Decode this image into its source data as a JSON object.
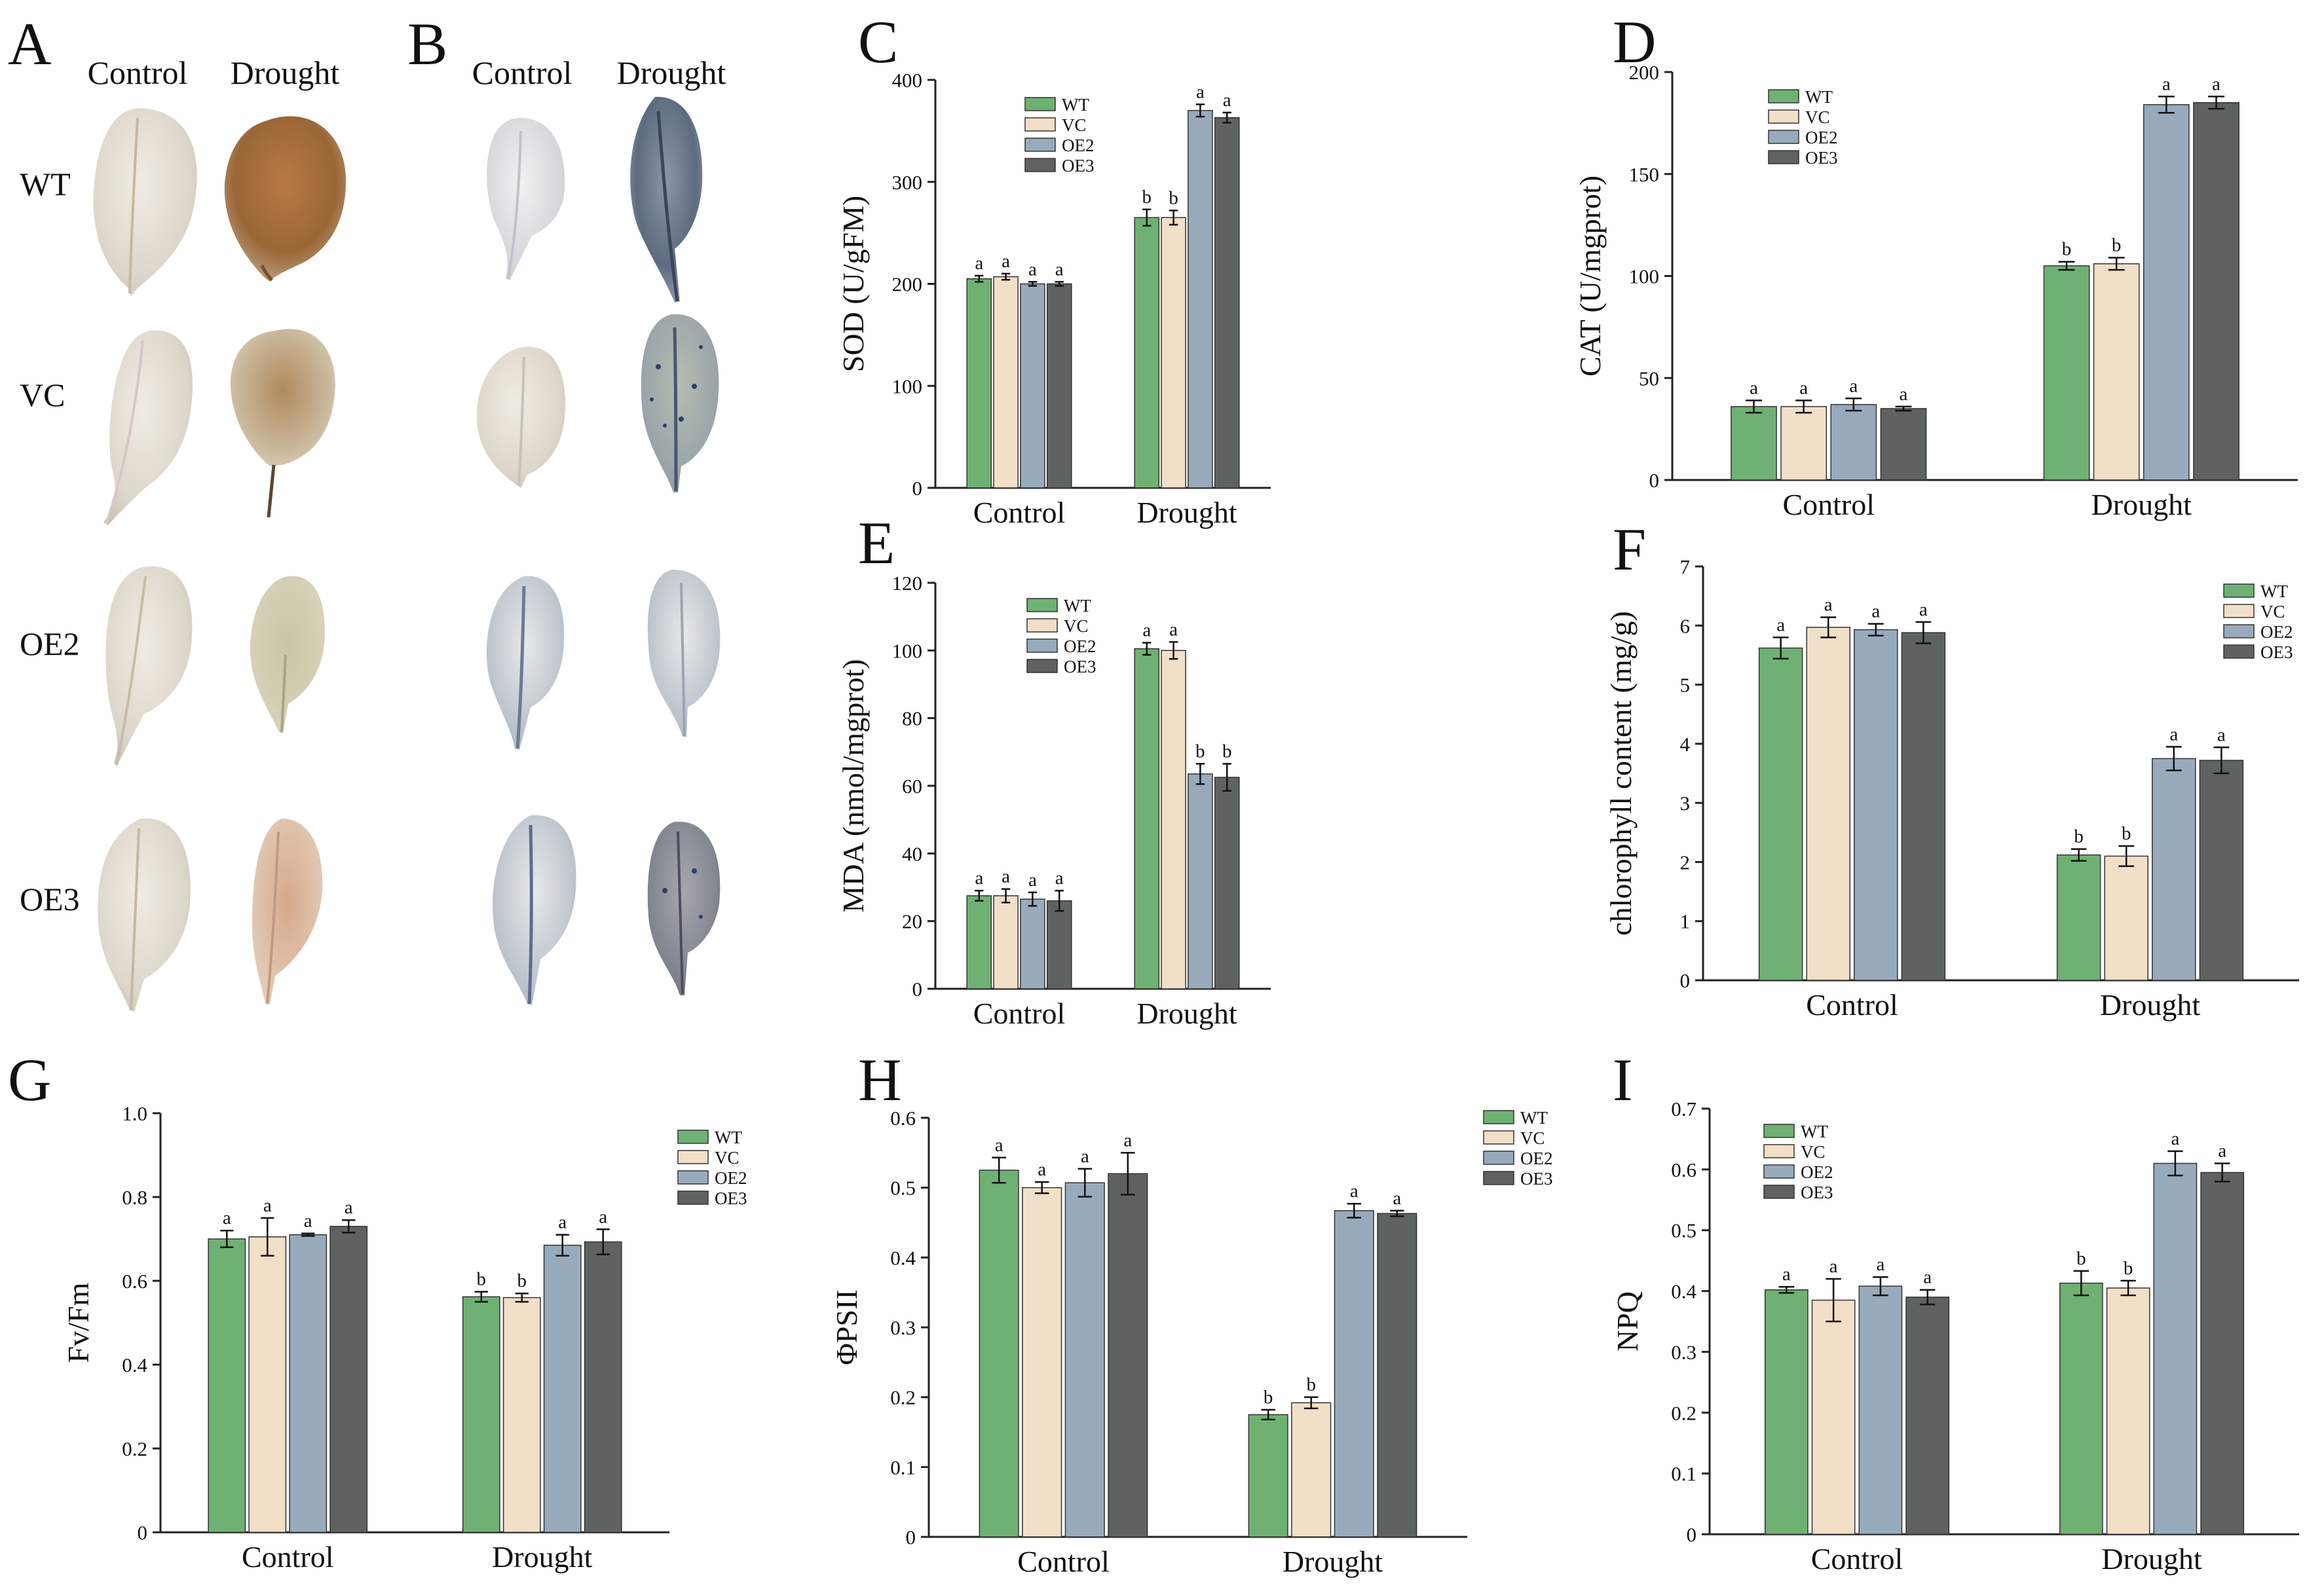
{
  "colors": {
    "WT": "#6fb173",
    "VC": "#f2dfc7",
    "OE2": "#98abbd",
    "OE3": "#5e6360",
    "axis": "#222222",
    "leaf_control": "#dcd6cc",
    "leaf_drought_brown": "#a06b3e",
    "leaf_stain_blue": "#3e4f7a"
  },
  "photos": {
    "A": {
      "label": "A",
      "col_labels": [
        "Control",
        "Drought"
      ],
      "row_labels": [
        "WT",
        "VC",
        "OE2",
        "OE3"
      ]
    },
    "B": {
      "label": "B",
      "col_labels": [
        "Control",
        "Drought"
      ]
    }
  },
  "chart_data": [
    {
      "panel": "C",
      "type": "bar",
      "ylabel": "SOD (U/gFM)",
      "ylim": [
        0,
        400
      ],
      "yticks": [
        "0",
        "100",
        "200",
        "300",
        "400"
      ],
      "categories": [
        "Control",
        "Drought"
      ],
      "legend": "top-left",
      "series": [
        {
          "name": "WT",
          "values": [
            205,
            265
          ],
          "errors": [
            3,
            8
          ],
          "letters": [
            "a",
            "b"
          ]
        },
        {
          "name": "VC",
          "values": [
            207,
            265
          ],
          "errors": [
            3,
            7
          ],
          "letters": [
            "a",
            "b"
          ]
        },
        {
          "name": "OE2",
          "values": [
            200,
            370
          ],
          "errors": [
            2,
            6
          ],
          "letters": [
            "a",
            "a"
          ]
        },
        {
          "name": "OE3",
          "values": [
            200,
            363
          ],
          "errors": [
            2,
            5
          ],
          "letters": [
            "a",
            "a"
          ]
        }
      ]
    },
    {
      "panel": "D",
      "type": "bar",
      "ylabel": "CAT (U/mgprot)",
      "ylim": [
        0,
        200
      ],
      "yticks": [
        "0",
        "50",
        "100",
        "150",
        "200"
      ],
      "categories": [
        "Control",
        "Drought"
      ],
      "legend": "top-left",
      "series": [
        {
          "name": "WT",
          "values": [
            36,
            105
          ],
          "errors": [
            3,
            2
          ],
          "letters": [
            "a",
            "b"
          ]
        },
        {
          "name": "VC",
          "values": [
            36,
            106
          ],
          "errors": [
            3,
            3
          ],
          "letters": [
            "a",
            "b"
          ]
        },
        {
          "name": "OE2",
          "values": [
            37,
            184
          ],
          "errors": [
            3,
            4
          ],
          "letters": [
            "a",
            "a"
          ]
        },
        {
          "name": "OE3",
          "values": [
            35,
            185
          ],
          "errors": [
            1,
            3
          ],
          "letters": [
            "a",
            "a"
          ]
        }
      ]
    },
    {
      "panel": "E",
      "type": "bar",
      "ylabel": "MDA (nmol/mgprot)",
      "ylim": [
        0,
        120
      ],
      "yticks": [
        "0",
        "20",
        "40",
        "60",
        "80",
        "100",
        "120"
      ],
      "categories": [
        "Control",
        "Drought"
      ],
      "legend": "top-left",
      "series": [
        {
          "name": "WT",
          "values": [
            27.5,
            100.5
          ],
          "errors": [
            1.5,
            1.8
          ],
          "letters": [
            "a",
            "a"
          ]
        },
        {
          "name": "VC",
          "values": [
            27.5,
            100
          ],
          "errors": [
            2,
            2.5
          ],
          "letters": [
            "a",
            "a"
          ]
        },
        {
          "name": "OE2",
          "values": [
            26.5,
            63.5
          ],
          "errors": [
            2,
            3
          ],
          "letters": [
            "a",
            "b"
          ]
        },
        {
          "name": "OE3",
          "values": [
            26,
            62.5
          ],
          "errors": [
            3,
            4
          ],
          "letters": [
            "a",
            "b"
          ]
        }
      ]
    },
    {
      "panel": "F",
      "type": "bar",
      "ylabel": "chlorophyll content (mg/g)",
      "ylim": [
        0,
        7
      ],
      "yticks": [
        "0",
        "1",
        "2",
        "3",
        "4",
        "5",
        "6",
        "7"
      ],
      "categories": [
        "Control",
        "Drought"
      ],
      "legend": "top-right",
      "series": [
        {
          "name": "WT",
          "values": [
            5.62,
            2.12
          ],
          "errors": [
            0.18,
            0.1
          ],
          "letters": [
            "a",
            "b"
          ]
        },
        {
          "name": "VC",
          "values": [
            5.97,
            2.1
          ],
          "errors": [
            0.17,
            0.17
          ],
          "letters": [
            "a",
            "b"
          ]
        },
        {
          "name": "OE2",
          "values": [
            5.93,
            3.75
          ],
          "errors": [
            0.1,
            0.2
          ],
          "letters": [
            "a",
            "a"
          ]
        },
        {
          "name": "OE3",
          "values": [
            5.88,
            3.72
          ],
          "errors": [
            0.18,
            0.22
          ],
          "letters": [
            "a",
            "a"
          ]
        }
      ]
    },
    {
      "panel": "G",
      "type": "bar",
      "ylabel": "Fv/Fm",
      "ylim": [
        0,
        1.0
      ],
      "yticks": [
        "0",
        "0.2",
        "0.4",
        "0.6",
        "0.8",
        "1.0"
      ],
      "categories": [
        "Control",
        "Drought"
      ],
      "legend": "top-right",
      "series": [
        {
          "name": "WT",
          "values": [
            0.7,
            0.562
          ],
          "errors": [
            0.02,
            0.012
          ],
          "letters": [
            "a",
            "b"
          ]
        },
        {
          "name": "VC",
          "values": [
            0.705,
            0.56
          ],
          "errors": [
            0.045,
            0.01
          ],
          "letters": [
            "a",
            "b"
          ]
        },
        {
          "name": "OE2",
          "values": [
            0.71,
            0.685
          ],
          "errors": [
            0.003,
            0.025
          ],
          "letters": [
            "a",
            "a"
          ]
        },
        {
          "name": "OE3",
          "values": [
            0.73,
            0.693
          ],
          "errors": [
            0.015,
            0.03
          ],
          "letters": [
            "a",
            "a"
          ]
        }
      ]
    },
    {
      "panel": "H",
      "type": "bar",
      "ylabel": "ΦPSII",
      "ylim": [
        0,
        0.6
      ],
      "yticks": [
        "0",
        "0.1",
        "0.2",
        "0.3",
        "0.4",
        "0.5",
        "0.6"
      ],
      "categories": [
        "Control",
        "Drought"
      ],
      "legend": "top-right",
      "series": [
        {
          "name": "WT",
          "values": [
            0.525,
            0.175
          ],
          "errors": [
            0.018,
            0.007
          ],
          "letters": [
            "a",
            "b"
          ]
        },
        {
          "name": "VC",
          "values": [
            0.5,
            0.192
          ],
          "errors": [
            0.008,
            0.008
          ],
          "letters": [
            "a",
            "b"
          ]
        },
        {
          "name": "OE2",
          "values": [
            0.507,
            0.467
          ],
          "errors": [
            0.02,
            0.01
          ],
          "letters": [
            "a",
            "a"
          ]
        },
        {
          "name": "OE3",
          "values": [
            0.52,
            0.463
          ],
          "errors": [
            0.03,
            0.004
          ],
          "letters": [
            "a",
            "a"
          ]
        }
      ]
    },
    {
      "panel": "I",
      "type": "bar",
      "ylabel": "NPQ",
      "ylim": [
        0,
        0.7
      ],
      "yticks": [
        "0",
        "0.1",
        "0.2",
        "0.3",
        "0.4",
        "0.5",
        "0.6",
        "0.7"
      ],
      "categories": [
        "Control",
        "Drought"
      ],
      "legend": "top-left",
      "series": [
        {
          "name": "WT",
          "values": [
            0.402,
            0.413
          ],
          "errors": [
            0.005,
            0.02
          ],
          "letters": [
            "a",
            "b"
          ]
        },
        {
          "name": "VC",
          "values": [
            0.385,
            0.405
          ],
          "errors": [
            0.035,
            0.012
          ],
          "letters": [
            "a",
            "b"
          ]
        },
        {
          "name": "OE2",
          "values": [
            0.408,
            0.61
          ],
          "errors": [
            0.015,
            0.02
          ],
          "letters": [
            "a",
            "a"
          ]
        },
        {
          "name": "OE3",
          "values": [
            0.39,
            0.595
          ],
          "errors": [
            0.012,
            0.015
          ],
          "letters": [
            "a",
            "a"
          ]
        }
      ]
    }
  ]
}
